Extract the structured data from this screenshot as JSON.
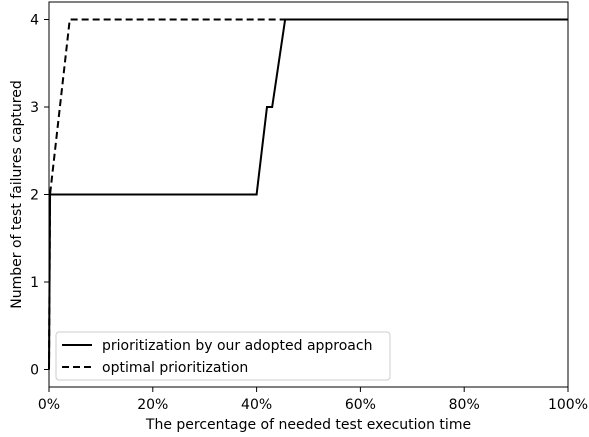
{
  "chart_data": {
    "type": "line",
    "xlabel": "The percentage of needed test execution time",
    "ylabel": "Number of test failures captured",
    "xlim": [
      0,
      100
    ],
    "ylim": [
      -0.2,
      4.2
    ],
    "x_ticks": [
      0,
      20,
      40,
      60,
      80,
      100
    ],
    "x_tick_labels": [
      "0%",
      "20%",
      "40%",
      "60%",
      "80%",
      "100%"
    ],
    "y_ticks": [
      0,
      1,
      2,
      3,
      4
    ],
    "y_tick_labels": [
      "0",
      "1",
      "2",
      "3",
      "4"
    ],
    "grid": false,
    "legend_position": "lower-left",
    "series": [
      {
        "name": "prioritization by our adopted approach",
        "style": "solid",
        "color": "#000000",
        "x": [
          0,
          0.2,
          40,
          42,
          43,
          45.5,
          100
        ],
        "y": [
          0,
          2,
          2,
          3,
          3,
          4,
          4
        ]
      },
      {
        "name": "optimal prioritization",
        "style": "dashed",
        "color": "#000000",
        "x": [
          0,
          0.2,
          4,
          100
        ],
        "y": [
          0,
          2,
          4,
          4
        ]
      }
    ]
  }
}
